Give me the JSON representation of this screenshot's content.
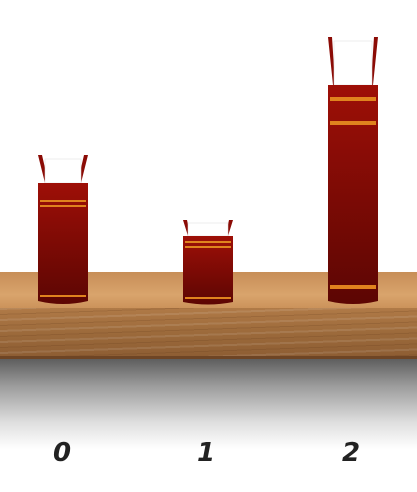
{
  "colors": {
    "book_cover": "#8b0b05",
    "book_band": "#e0831e",
    "pages": "#ffffff",
    "shelf_wood": "#c99058"
  },
  "books": [
    {
      "label": "0"
    },
    {
      "label": "1"
    },
    {
      "label": "2"
    }
  ]
}
